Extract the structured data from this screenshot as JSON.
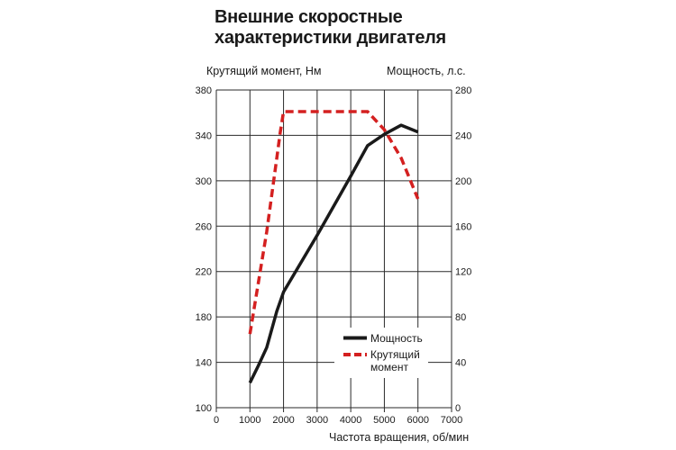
{
  "chart_data": {
    "type": "line",
    "title": "Внешние скоростные характеристики двигателя",
    "title_lines": [
      "Внешние скоростные",
      "характеристики двигателя"
    ],
    "xlabel": "Частота вращения, об/мин",
    "ylabel_left": "Крутящий момент, Нм",
    "ylabel_right": "Мощность, л.с.",
    "xlim": [
      0,
      7000
    ],
    "ylim_left": [
      100,
      380
    ],
    "ylim_right": [
      0,
      280
    ],
    "x_ticks": [
      0,
      1000,
      2000,
      3000,
      4000,
      5000,
      6000,
      7000
    ],
    "y_ticks_left": [
      100,
      140,
      180,
      220,
      260,
      300,
      340,
      380
    ],
    "y_ticks_right": [
      0,
      40,
      80,
      120,
      160,
      200,
      240,
      280
    ],
    "grid": true,
    "legend_position": "bottom-right",
    "series": [
      {
        "name": "Мощность",
        "axis": "right",
        "style": "solid",
        "color": "#1a1a1a",
        "x": [
          1000,
          1250,
          1500,
          1800,
          2000,
          3000,
          4000,
          4500,
          5000,
          5500,
          6000
        ],
        "y": [
          22,
          37,
          53,
          85,
          102,
          152,
          204,
          231,
          241,
          249,
          243
        ]
      },
      {
        "name": "Крутящий момент",
        "name_lines": [
          "Крутящий",
          "момент"
        ],
        "axis": "left",
        "style": "dashed",
        "color": "#d42020",
        "x": [
          1000,
          1500,
          1800,
          1900,
          2000,
          3000,
          4000,
          4500,
          5000,
          5500,
          6000
        ],
        "y": [
          165,
          255,
          320,
          342,
          361,
          361,
          361,
          361,
          345,
          320,
          284
        ]
      }
    ]
  }
}
